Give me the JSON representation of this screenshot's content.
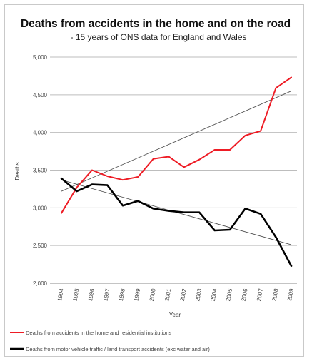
{
  "chart_data": {
    "type": "line",
    "title": "Deaths from accidents in the home and on the road",
    "subtitle": "- 15 years of ONS data for England and Wales",
    "xlabel": "Year",
    "ylabel": "Deaths",
    "x": [
      "1994",
      "1995",
      "1996",
      "1997",
      "1998",
      "1999",
      "2000",
      "2001",
      "2002",
      "2003",
      "2004",
      "2005",
      "2006",
      "2007",
      "2008",
      "2009"
    ],
    "ylim": [
      2000,
      5000
    ],
    "yticks": [
      2000,
      2500,
      3000,
      3500,
      4000,
      4500,
      5000
    ],
    "ytick_labels": [
      "2,000",
      "2,500",
      "3,000",
      "3,500",
      "4,000",
      "4,500",
      "5,000"
    ],
    "grid": "horizontal",
    "legend_position": "bottom",
    "series": [
      {
        "name": "Deaths from accidents in the home and residential institutions",
        "color": "#ee1c25",
        "values": [
          2930,
          3270,
          3500,
          3420,
          3370,
          3410,
          3650,
          3680,
          3540,
          3640,
          3770,
          3770,
          3960,
          4020,
          4590,
          4730
        ],
        "trend": [
          3220,
          4550
        ]
      },
      {
        "name": "Deaths from motor vehicle traffic / land transport accidents (exc water and air)",
        "color": "#000000",
        "values": [
          3390,
          3220,
          3310,
          3300,
          3030,
          3090,
          2990,
          2960,
          2940,
          2940,
          2700,
          2710,
          2990,
          2920,
          2610,
          2230
        ],
        "trend": [
          3370,
          2510
        ]
      }
    ]
  }
}
